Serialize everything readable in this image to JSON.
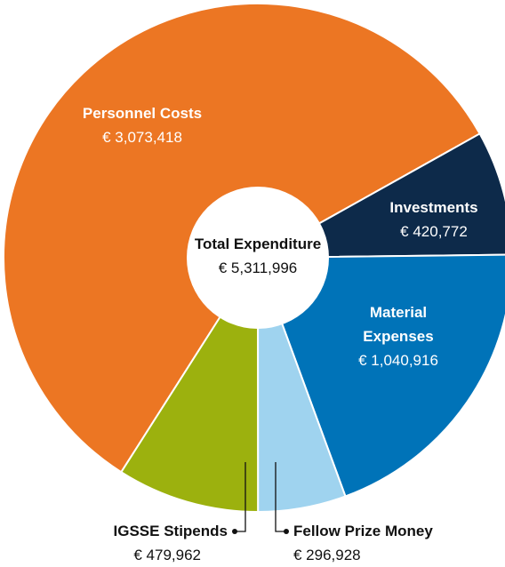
{
  "chart_data": {
    "type": "donut",
    "categories": [
      "Personnel Costs",
      "Investments",
      "Material Expenses",
      "Fellow Prize Money",
      "IGSSE Stipends"
    ],
    "values": [
      3073418,
      420772,
      1040916,
      296928,
      479962
    ],
    "value_labels": [
      "€ 3,073,418",
      "€ 420,772",
      "€ 1,040,916",
      "€ 296,928",
      "€ 479,962"
    ],
    "colors": [
      "#ec7623",
      "#0d2a4a",
      "#0073b8",
      "#9fd3ef",
      "#9cb10e"
    ],
    "center_title": "Total Expenditure",
    "center_value_label": "€ 5,311,996"
  }
}
